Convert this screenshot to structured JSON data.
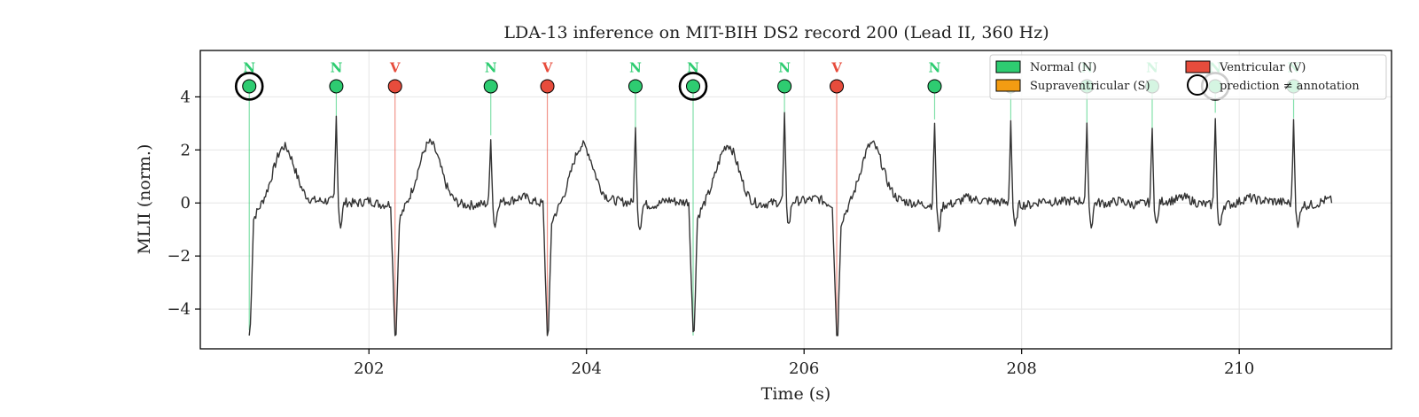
{
  "chart_data": {
    "type": "line",
    "title": "LDA-13 inference on MIT-BIH DS2 record 200 (Lead II, 360 Hz)",
    "xlabel": "Time (s)",
    "ylabel": "MLII (norm.)",
    "xlim": [
      200.45,
      211.4
    ],
    "ylim": [
      -5.5,
      5.75
    ],
    "x_ticks": [
      202,
      204,
      206,
      208,
      210
    ],
    "x_tick_labels": [
      "202",
      "204",
      "206",
      "208",
      "210"
    ],
    "y_ticks": [
      -4,
      -2,
      0,
      2,
      4
    ],
    "y_tick_labels": [
      "−4",
      "−2",
      "0",
      "2",
      "4"
    ],
    "grid": true,
    "legend_position": "top-right",
    "legend": [
      {
        "label": "Normal (N)",
        "marker": "patch",
        "color": "#2ecc71"
      },
      {
        "label": "Supraventricular (S)",
        "marker": "patch",
        "color": "#f39c12"
      },
      {
        "label": "Ventricular (V)",
        "marker": "patch",
        "color": "#e74c3c"
      },
      {
        "label": "prediction ≠ annotation",
        "marker": "circle",
        "color": "#000000"
      }
    ],
    "colors": {
      "N": "#2ecc71",
      "S": "#f39c12",
      "V": "#e74c3c",
      "signal": "#333333"
    },
    "beats": [
      {
        "t": 200.9,
        "label": "N",
        "peak": -4.8,
        "mismatch": true
      },
      {
        "t": 201.7,
        "label": "N",
        "peak": 3.2,
        "mismatch": false
      },
      {
        "t": 202.24,
        "label": "V",
        "peak": -5.0,
        "mismatch": false
      },
      {
        "t": 203.12,
        "label": "N",
        "peak": 2.55,
        "mismatch": false
      },
      {
        "t": 203.64,
        "label": "V",
        "peak": -5.0,
        "mismatch": false
      },
      {
        "t": 204.45,
        "label": "N",
        "peak": 2.8,
        "mismatch": false
      },
      {
        "t": 204.98,
        "label": "N",
        "peak": -5.0,
        "mismatch": true
      },
      {
        "t": 205.82,
        "label": "N",
        "peak": 3.2,
        "mismatch": false
      },
      {
        "t": 206.3,
        "label": "V",
        "peak": -5.0,
        "mismatch": false
      },
      {
        "t": 207.2,
        "label": "N",
        "peak": 3.15,
        "mismatch": false
      },
      {
        "t": 207.9,
        "label": "N",
        "peak": 3.15,
        "mismatch": false
      },
      {
        "t": 208.6,
        "label": "N",
        "peak": 2.8,
        "mismatch": false
      },
      {
        "t": 209.2,
        "label": "N",
        "peak": 2.75,
        "mismatch": false
      },
      {
        "t": 209.78,
        "label": "N",
        "peak": 3.4,
        "mismatch": true
      },
      {
        "t": 210.5,
        "label": "N",
        "peak": 3.2,
        "mismatch": false
      }
    ],
    "signal_end": 210.85,
    "marker_y": 4.4
  }
}
